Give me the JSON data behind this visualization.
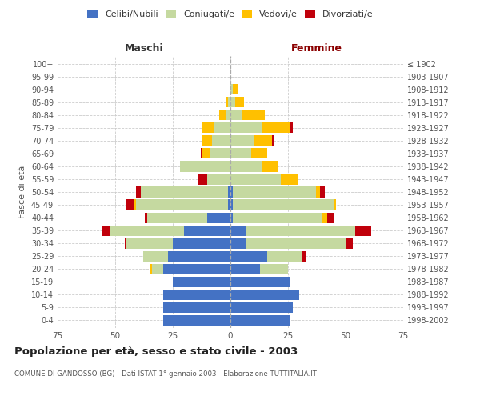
{
  "age_groups": [
    "0-4",
    "5-9",
    "10-14",
    "15-19",
    "20-24",
    "25-29",
    "30-34",
    "35-39",
    "40-44",
    "45-49",
    "50-54",
    "55-59",
    "60-64",
    "65-69",
    "70-74",
    "75-79",
    "80-84",
    "85-89",
    "90-94",
    "95-99",
    "100+"
  ],
  "birth_years": [
    "1998-2002",
    "1993-1997",
    "1988-1992",
    "1983-1987",
    "1978-1982",
    "1973-1977",
    "1968-1972",
    "1963-1967",
    "1958-1962",
    "1953-1957",
    "1948-1952",
    "1943-1947",
    "1938-1942",
    "1933-1937",
    "1928-1932",
    "1923-1927",
    "1918-1922",
    "1913-1917",
    "1908-1912",
    "1903-1907",
    "≤ 1902"
  ],
  "male_celibi": [
    29,
    29,
    29,
    25,
    29,
    27,
    25,
    20,
    10,
    1,
    1,
    0,
    0,
    0,
    0,
    0,
    0,
    0,
    0,
    0,
    0
  ],
  "male_coniugati": [
    0,
    0,
    0,
    0,
    5,
    11,
    20,
    32,
    26,
    40,
    38,
    10,
    22,
    9,
    8,
    7,
    2,
    1,
    0,
    0,
    0
  ],
  "male_vedovi": [
    0,
    0,
    0,
    0,
    1,
    0,
    0,
    0,
    0,
    1,
    0,
    0,
    0,
    3,
    4,
    5,
    3,
    1,
    0,
    0,
    0
  ],
  "male_divorziati": [
    0,
    0,
    0,
    0,
    0,
    0,
    1,
    4,
    1,
    3,
    2,
    4,
    0,
    1,
    0,
    0,
    0,
    0,
    0,
    0,
    0
  ],
  "female_celibi": [
    26,
    27,
    30,
    26,
    13,
    16,
    7,
    7,
    1,
    1,
    1,
    0,
    0,
    0,
    0,
    0,
    0,
    0,
    0,
    0,
    0
  ],
  "female_coniugati": [
    0,
    0,
    0,
    0,
    12,
    15,
    43,
    47,
    39,
    44,
    36,
    22,
    14,
    9,
    10,
    14,
    5,
    2,
    1,
    0,
    0
  ],
  "female_vedovi": [
    0,
    0,
    0,
    0,
    0,
    0,
    0,
    0,
    2,
    1,
    2,
    7,
    7,
    7,
    8,
    12,
    10,
    4,
    2,
    0,
    0
  ],
  "female_divorziati": [
    0,
    0,
    0,
    0,
    0,
    2,
    3,
    7,
    3,
    0,
    2,
    0,
    0,
    0,
    1,
    1,
    0,
    0,
    0,
    0,
    0
  ],
  "colors": {
    "celibi": "#4472c4",
    "coniugati": "#c5d9a0",
    "vedovi": "#ffc000",
    "divorziati": "#c0000b"
  },
  "legend_labels": [
    "Celibi/Nubili",
    "Coniugati/e",
    "Vedovi/e",
    "Divorziati/e"
  ],
  "title": "Popolazione per età, sesso e stato civile - 2003",
  "subtitle": "COMUNE DI GANDOSSO (BG) - Dati ISTAT 1° gennaio 2003 - Elaborazione TUTTITALIA.IT",
  "xlabel_left": "Maschi",
  "xlabel_right": "Femmine",
  "ylabel_left": "Fasce di età",
  "xlim": 75,
  "background_color": "#ffffff",
  "grid_color": "#cccccc",
  "maschi_color": "#333333",
  "femmine_color": "#8b0000"
}
